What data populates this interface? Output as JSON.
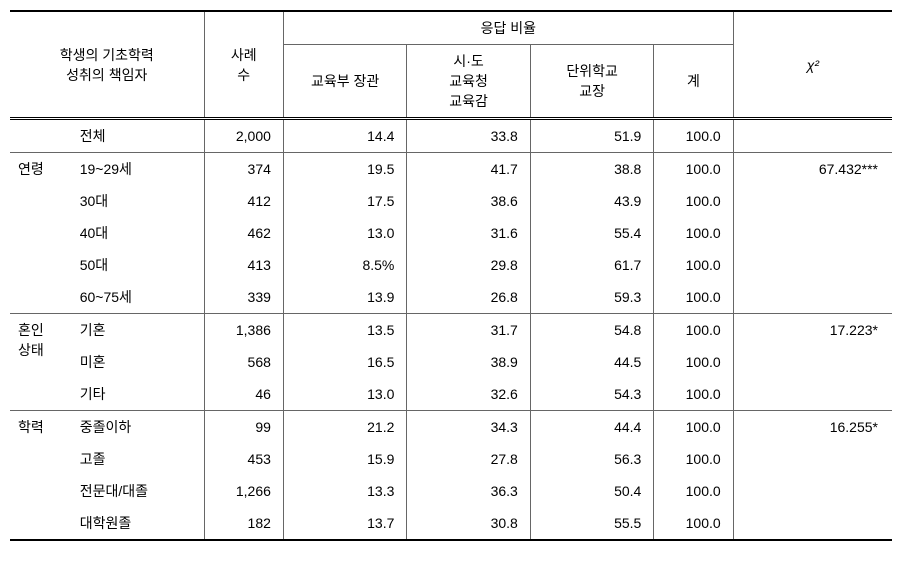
{
  "headers": {
    "main_category": "학생의 기초학력\n성취의 책임자",
    "case_count": "사례\n수",
    "response_ratio": "응답 비율",
    "col_minister": "교육부 장관",
    "col_superintendent": "시·도\n교육청\n교육감",
    "col_principal": "단위학교\n교장",
    "col_total": "계",
    "chi_square": "χ²"
  },
  "groups": [
    {
      "category": "",
      "rows": [
        {
          "label": "전체",
          "n": "2,000",
          "v1": "14.4",
          "v2": "33.8",
          "v3": "51.9",
          "total": "100.0",
          "chi": ""
        }
      ]
    },
    {
      "category": "연령",
      "rows": [
        {
          "label": "19~29세",
          "n": "374",
          "v1": "19.5",
          "v2": "41.7",
          "v3": "38.8",
          "total": "100.0",
          "chi": "67.432***"
        },
        {
          "label": "30대",
          "n": "412",
          "v1": "17.5",
          "v2": "38.6",
          "v3": "43.9",
          "total": "100.0",
          "chi": ""
        },
        {
          "label": "40대",
          "n": "462",
          "v1": "13.0",
          "v2": "31.6",
          "v3": "55.4",
          "total": "100.0",
          "chi": ""
        },
        {
          "label": "50대",
          "n": "413",
          "v1": "8.5%",
          "v2": "29.8",
          "v3": "61.7",
          "total": "100.0",
          "chi": ""
        },
        {
          "label": "60~75세",
          "n": "339",
          "v1": "13.9",
          "v2": "26.8",
          "v3": "59.3",
          "total": "100.0",
          "chi": ""
        }
      ]
    },
    {
      "category": "혼인\n상태",
      "rows": [
        {
          "label": "기혼",
          "n": "1,386",
          "v1": "13.5",
          "v2": "31.7",
          "v3": "54.8",
          "total": "100.0",
          "chi": "17.223*"
        },
        {
          "label": "미혼",
          "n": "568",
          "v1": "16.5",
          "v2": "38.9",
          "v3": "44.5",
          "total": "100.0",
          "chi": ""
        },
        {
          "label": "기타",
          "n": "46",
          "v1": "13.0",
          "v2": "32.6",
          "v3": "54.3",
          "total": "100.0",
          "chi": ""
        }
      ]
    },
    {
      "category": "학력",
      "rows": [
        {
          "label": "중졸이하",
          "n": "99",
          "v1": "21.2",
          "v2": "34.3",
          "v3": "44.4",
          "total": "100.0",
          "chi": "16.255*"
        },
        {
          "label": "고졸",
          "n": "453",
          "v1": "15.9",
          "v2": "27.8",
          "v3": "56.3",
          "total": "100.0",
          "chi": ""
        },
        {
          "label": "전문대/대졸",
          "n": "1,266",
          "v1": "13.3",
          "v2": "36.3",
          "v3": "50.4",
          "total": "100.0",
          "chi": ""
        },
        {
          "label": "대학원졸",
          "n": "182",
          "v1": "13.7",
          "v2": "30.8",
          "v3": "55.5",
          "total": "100.0",
          "chi": ""
        }
      ]
    }
  ],
  "styling": {
    "col_widths": [
      "7%",
      "15%",
      "9%",
      "14%",
      "14%",
      "14%",
      "9%",
      "18%"
    ],
    "font_size": 14,
    "border_color": "#666666",
    "heavy_border_color": "#000000",
    "background": "#ffffff"
  }
}
